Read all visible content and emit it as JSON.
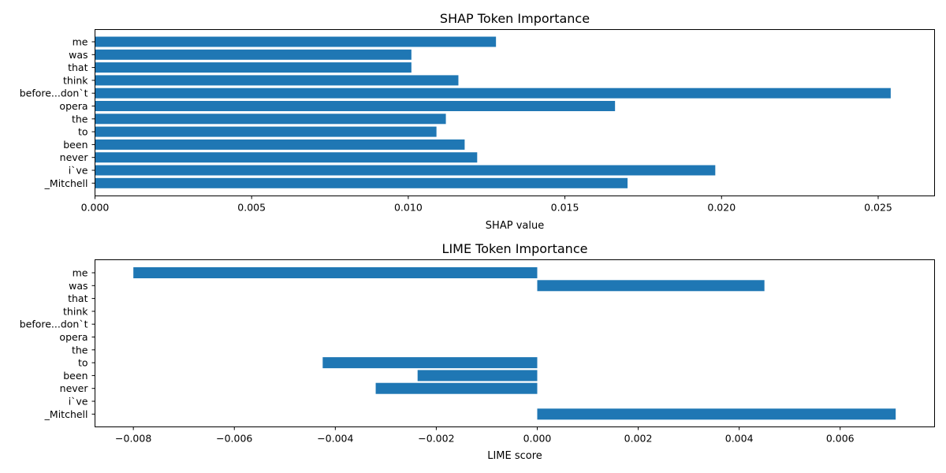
{
  "chart_data": [
    {
      "type": "bar",
      "orientation": "horizontal",
      "title": "SHAP Token Importance",
      "xlabel": "SHAP value",
      "ylabel": "",
      "categories": [
        "me",
        "was",
        "that",
        "think",
        "before...don`t",
        "opera",
        "the",
        "to",
        "been",
        "never",
        "i`ve",
        "_Mitchell"
      ],
      "values": [
        0.0128,
        0.0101,
        0.0101,
        0.0116,
        0.0254,
        0.0166,
        0.0112,
        0.0109,
        0.0118,
        0.0122,
        0.0198,
        0.017
      ],
      "xlim": [
        0,
        0.0268
      ],
      "xticks": [
        0.0,
        0.005,
        0.01,
        0.015,
        0.02,
        0.025
      ],
      "xtick_labels": [
        "0.000",
        "0.005",
        "0.010",
        "0.015",
        "0.020",
        "0.025"
      ],
      "bar_color": "#1f77b4",
      "grid": false,
      "legend": "none"
    },
    {
      "type": "bar",
      "orientation": "horizontal",
      "title": "LIME Token Importance",
      "xlabel": "LIME score",
      "ylabel": "",
      "categories": [
        "me",
        "was",
        "that",
        "think",
        "before...don`t",
        "opera",
        "the",
        "to",
        "been",
        "never",
        "i`ve",
        "_Mitchell"
      ],
      "values": [
        -0.008,
        0.0045,
        0,
        0,
        0,
        0,
        0,
        -0.00425,
        -0.00237,
        -0.0032,
        0,
        0.0071
      ],
      "xlim": [
        -0.00876,
        0.00787
      ],
      "xticks": [
        -0.008,
        -0.006,
        -0.004,
        -0.002,
        0.0,
        0.002,
        0.004,
        0.006
      ],
      "xtick_labels": [
        "−0.008",
        "−0.006",
        "−0.004",
        "−0.002",
        "0.000",
        "0.002",
        "0.004",
        "0.006"
      ],
      "bar_color": "#1f77b4",
      "grid": false,
      "legend": "none"
    }
  ]
}
